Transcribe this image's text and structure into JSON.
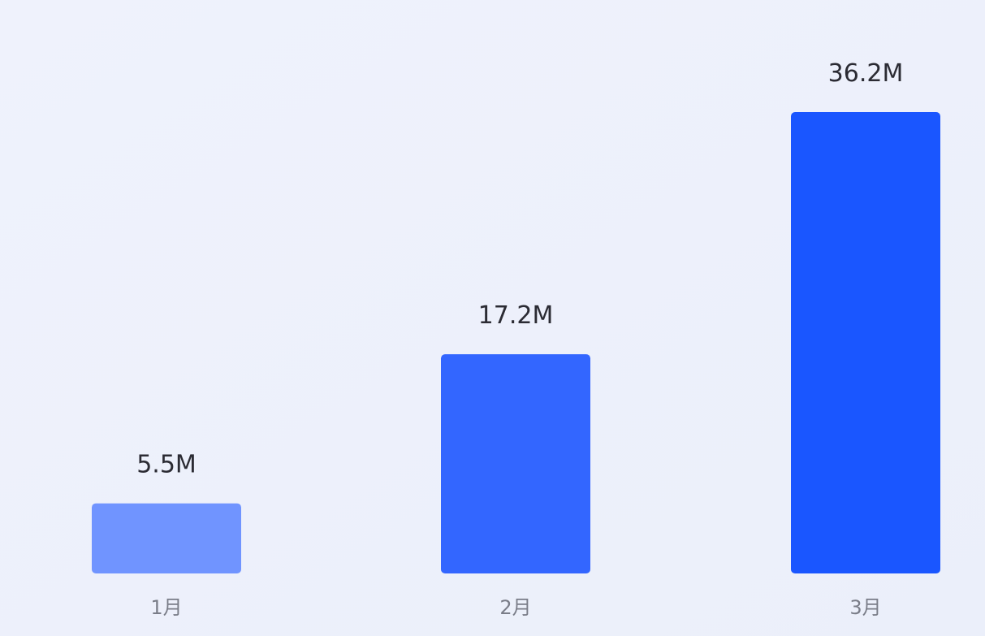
{
  "chart_data": {
    "type": "bar",
    "categories": [
      "1月",
      "2月",
      "3月"
    ],
    "values": [
      5.5,
      17.2,
      36.2
    ],
    "value_labels": [
      "5.5M",
      "17.2M",
      "36.2M"
    ],
    "colors": [
      "#7094ff",
      "#3366ff",
      "#1a56ff"
    ]
  }
}
